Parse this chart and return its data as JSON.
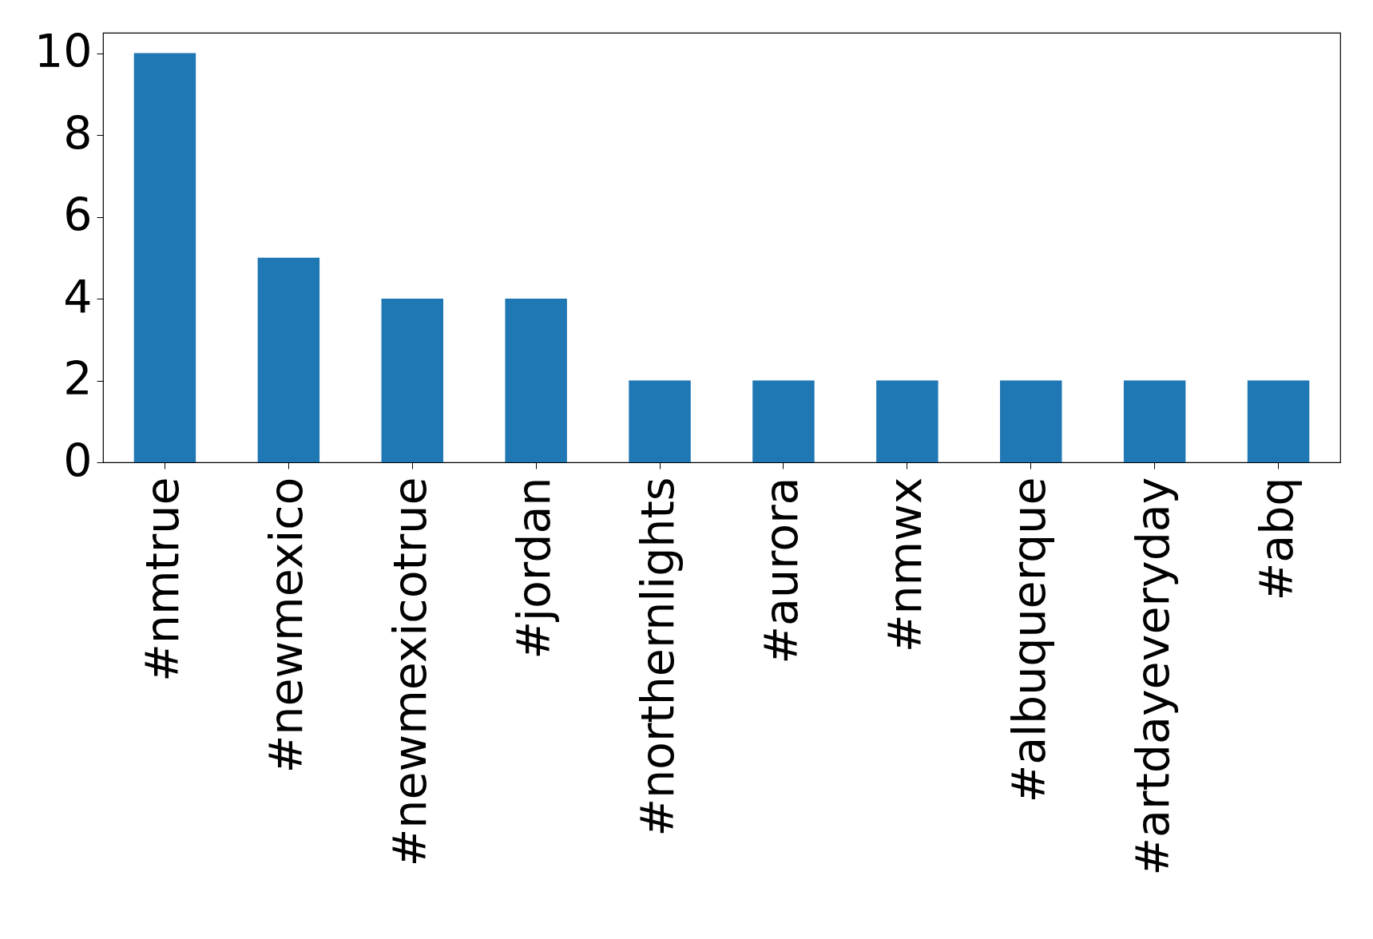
{
  "chart_data": {
    "type": "bar",
    "categories": [
      "#nmtrue",
      "#newmexico",
      "#newmexicotrue",
      "#jordan",
      "#northernlights",
      "#aurora",
      "#nmwx",
      "#albuquerque",
      "#artdayeveryday",
      "#abq"
    ],
    "values": [
      10,
      5,
      4,
      4,
      2,
      2,
      2,
      2,
      2,
      2
    ],
    "color": "#1f77b4",
    "ylim": [
      0,
      10.5
    ],
    "yticks": [
      0,
      2,
      4,
      6,
      8,
      10
    ],
    "grid": false
  }
}
